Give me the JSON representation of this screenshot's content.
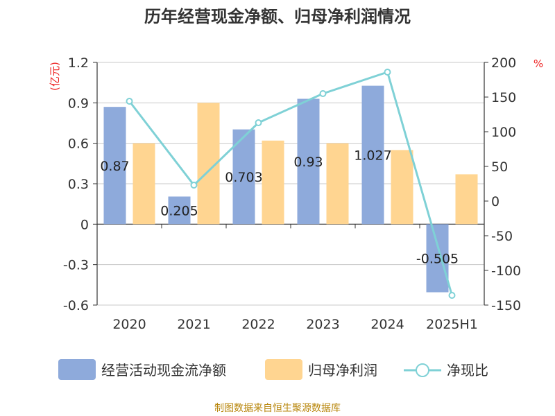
{
  "chart_data": {
    "type": "bar",
    "title": "历年经营现金净额、归母净利润情况",
    "categories": [
      "2020",
      "2021",
      "2022",
      "2023",
      "2024",
      "2025H1"
    ],
    "series": [
      {
        "name": "经营活动现金流净额",
        "type": "bar",
        "axis": "left",
        "color": "#8eaadb",
        "values": [
          0.87,
          0.205,
          0.703,
          0.93,
          1.027,
          -0.505
        ],
        "labels": [
          "0.87",
          "0.205",
          "0.703",
          "0.93",
          "1.027",
          "-0.505"
        ]
      },
      {
        "name": "归母净利润",
        "type": "bar",
        "axis": "left",
        "color": "#ffd591",
        "values": [
          0.6,
          0.9,
          0.62,
          0.6,
          0.55,
          0.37
        ]
      },
      {
        "name": "净现比",
        "type": "line",
        "axis": "right",
        "color": "#7fd1d6",
        "values": [
          144,
          23,
          113,
          155,
          186,
          -136
        ]
      }
    ],
    "y_left": {
      "unit": "(亿元)",
      "min": -0.6,
      "max": 1.2,
      "ticks": [
        "1.2",
        "0.9",
        "0.6",
        "0.3",
        "0",
        "-0.3",
        "-0.6"
      ]
    },
    "y_right": {
      "unit": "%",
      "min": -150,
      "max": 200,
      "ticks": [
        "200",
        "150",
        "100",
        "50",
        "0",
        "-50",
        "-100",
        "-150"
      ]
    },
    "grid": true,
    "legend": "bottom"
  },
  "footer": {
    "source": "制图数据来自恒生聚源数据库"
  }
}
